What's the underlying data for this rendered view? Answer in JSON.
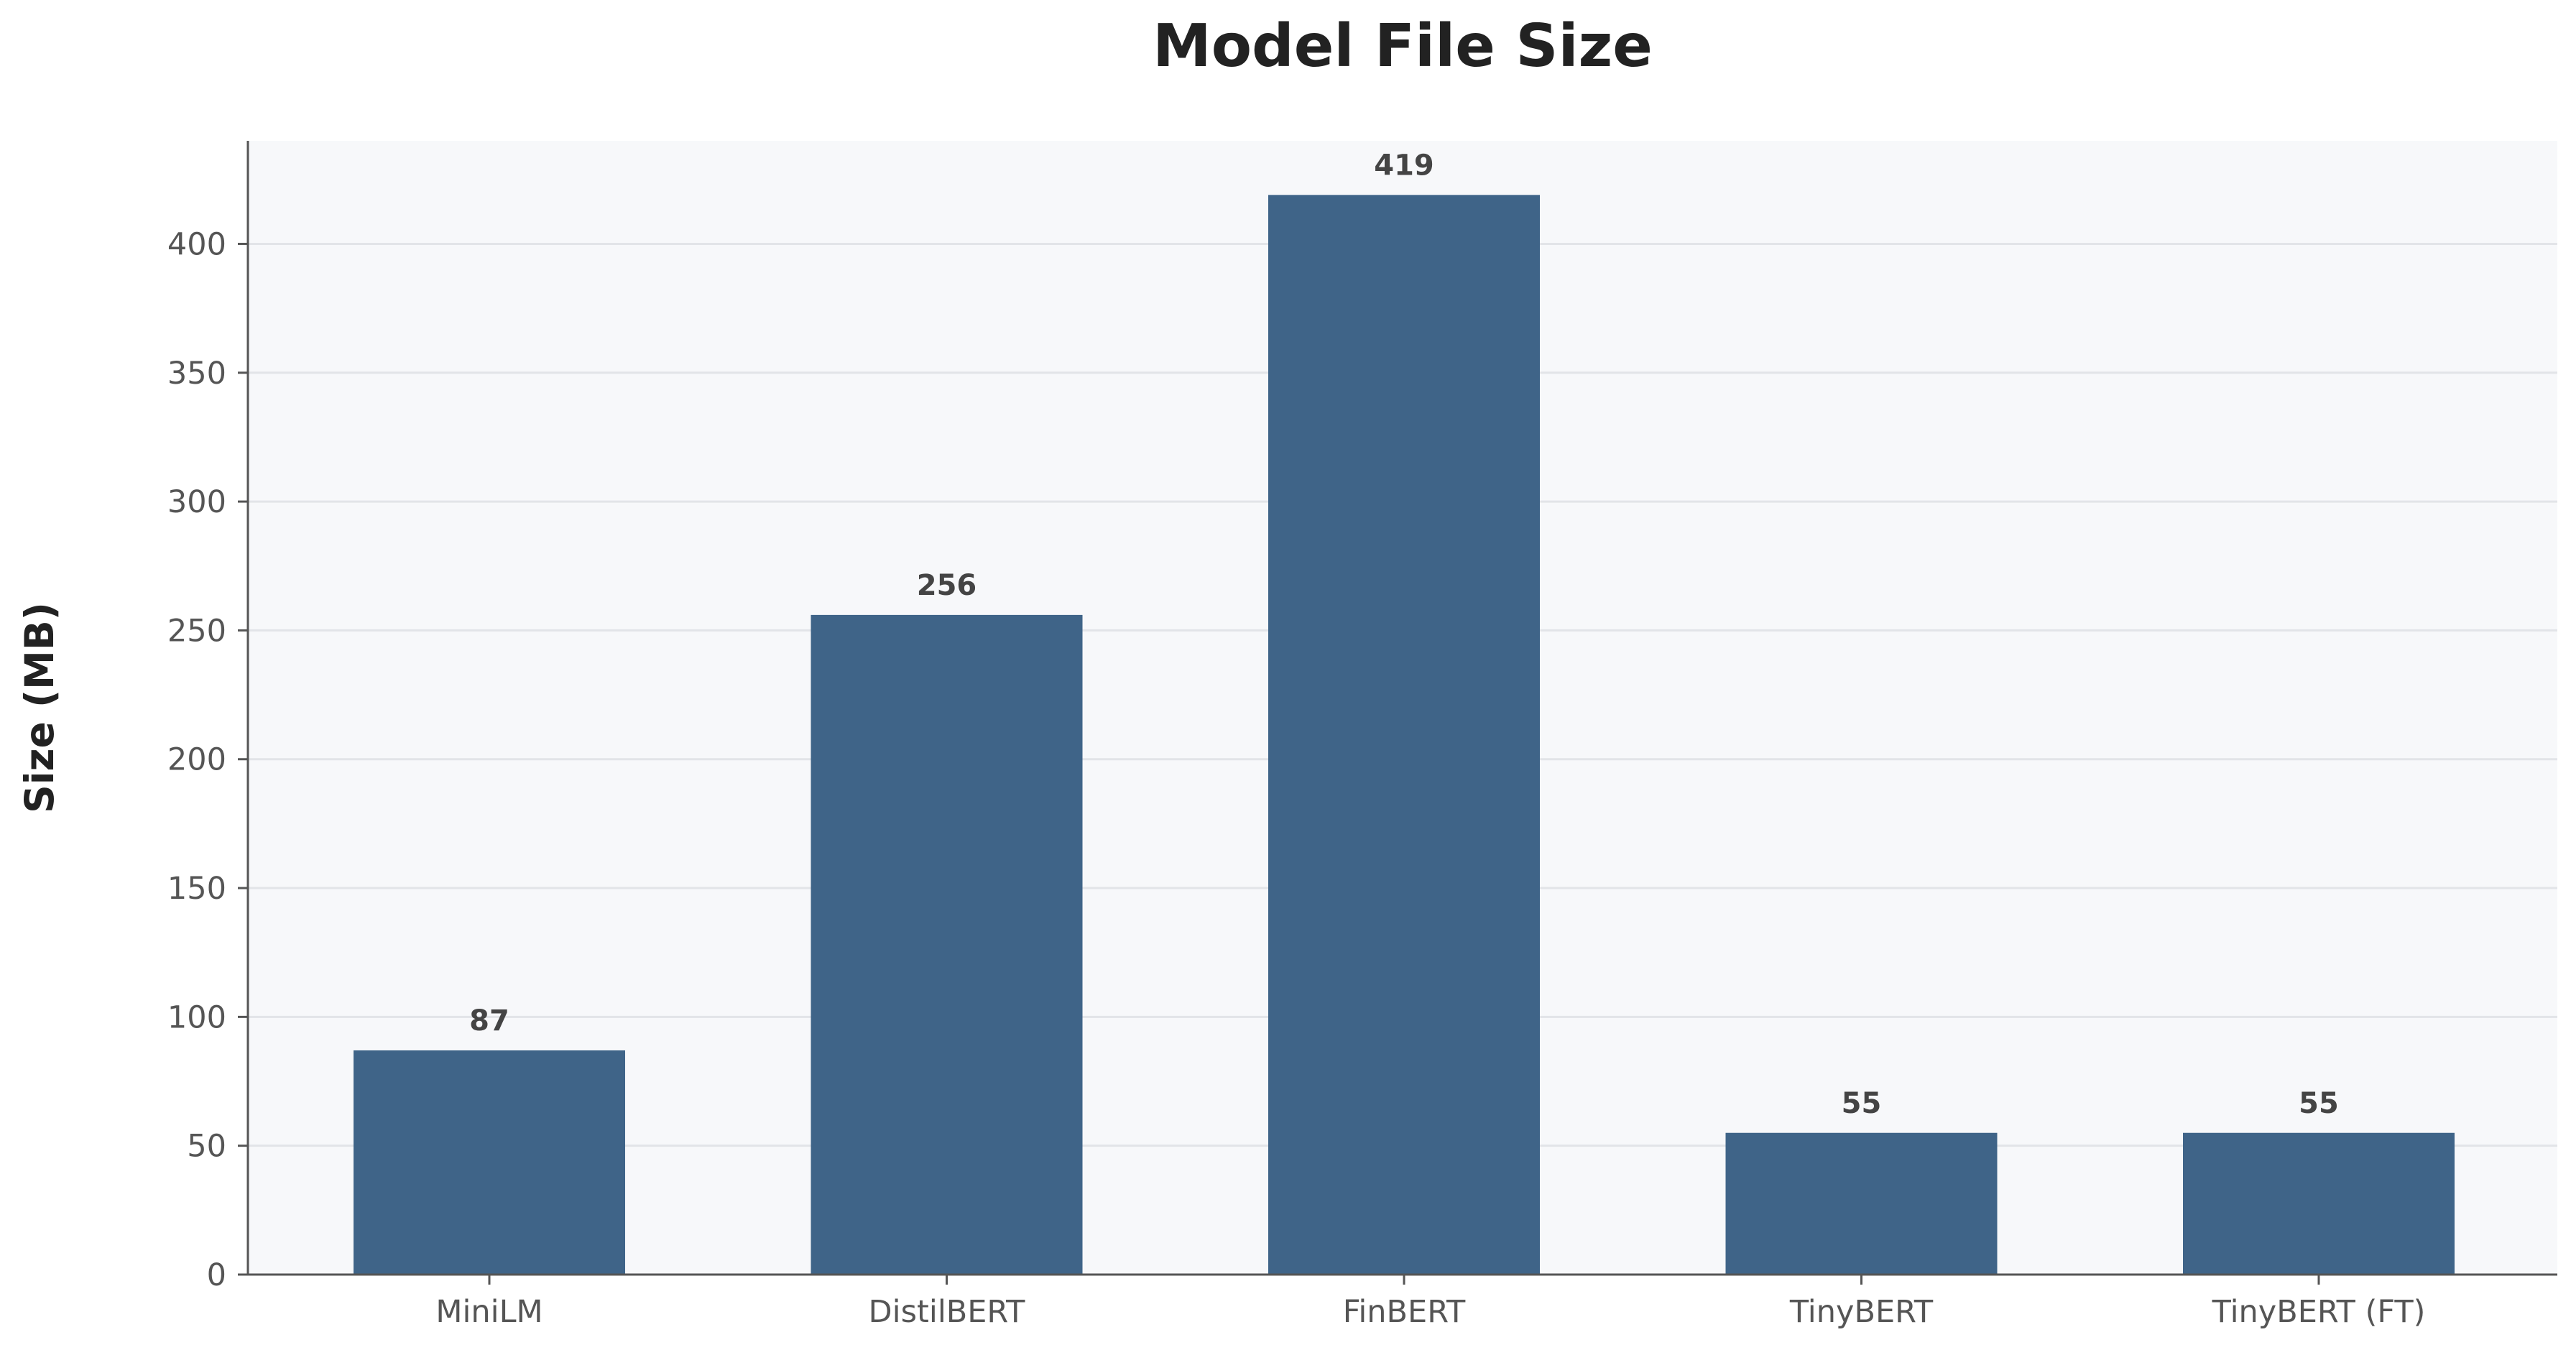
{
  "chart_data": {
    "type": "bar",
    "title": "Model File Size",
    "xlabel": "",
    "ylabel": "Size (MB)",
    "categories": [
      "MiniLM",
      "DistilBERT",
      "FinBERT",
      "TinyBERT",
      "TinyBERT (FT)"
    ],
    "values": [
      87,
      256,
      419,
      55,
      55
    ],
    "data_labels": [
      "87",
      "256",
      "419",
      "55",
      "55"
    ],
    "ylim": [
      0,
      440
    ],
    "yticks": [
      0,
      50,
      100,
      150,
      200,
      250,
      300,
      350,
      400
    ],
    "grid": true,
    "legend": "none",
    "colors": {
      "bar": "#3f6488",
      "plot_background": "#f7f8fa",
      "grid": "#e2e4e8",
      "axis": "#555555"
    }
  }
}
